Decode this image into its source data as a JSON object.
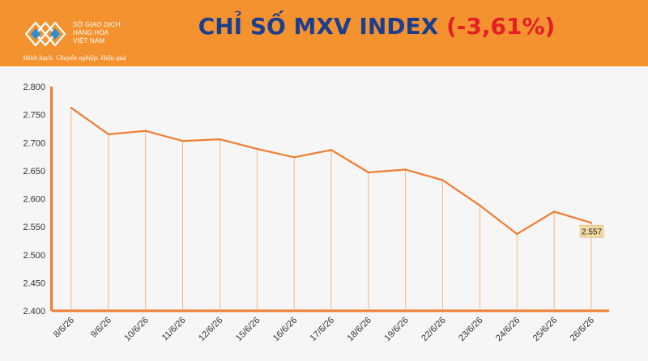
{
  "header": {
    "logo": {
      "org_lines": [
        "SỞ GIAO DỊCH",
        "HÀNG HÓA",
        "VIỆT NAM"
      ],
      "tagline": "Minh bạch. Chuyên nghiệp. Hiệu quả"
    },
    "title": "CHỈ SỐ MXV INDEX",
    "change": "(-3,61%)",
    "colors": {
      "banner": "#f4922f",
      "title": "#1a3f8f",
      "change": "#e41e26"
    }
  },
  "chart_data": {
    "type": "line",
    "categories": [
      "8/6/26",
      "9/6/26",
      "10/6/26",
      "11/6/26",
      "12/6/26",
      "15/6/26",
      "16/6/26",
      "17/6/26",
      "18/6/26",
      "19/6/26",
      "22/6/26",
      "23/6/26",
      "24/6/26",
      "25/6/26",
      "26/6/26"
    ],
    "series": [
      {
        "values": [
          2762,
          2715,
          2721,
          2703,
          2706,
          2689,
          2674,
          2687,
          2647,
          2652,
          2633,
          2588,
          2537,
          2577,
          2557
        ],
        "color": "#ef7d31"
      }
    ],
    "ylim": [
      2400,
      2800
    ],
    "yticks": [
      "2.400",
      "2.450",
      "2.500",
      "2.550",
      "2.600",
      "2.650",
      "2.700",
      "2.750",
      "2.800"
    ],
    "last_value_label": "2.557",
    "drop_lines": true,
    "grid": false,
    "legend": "none"
  }
}
